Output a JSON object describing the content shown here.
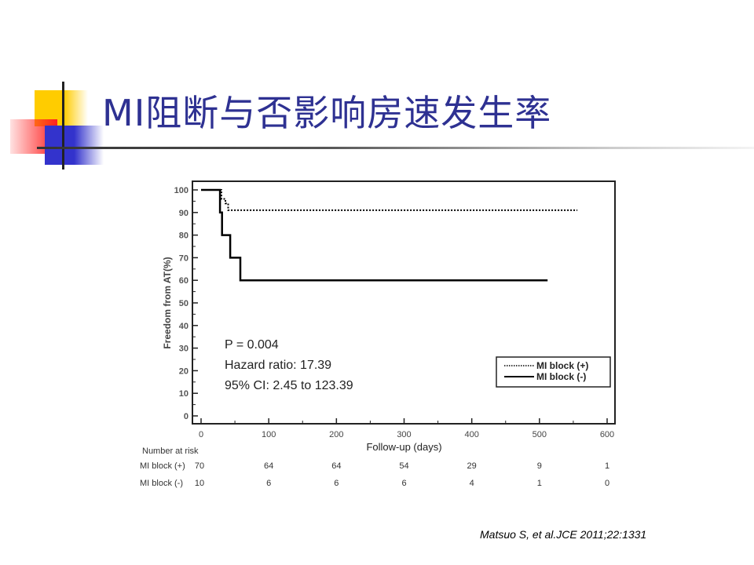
{
  "slide": {
    "title": "MI阻断与否影响房速发生率",
    "citation": "Matsuo S, et al.JCE 2011;22:1331",
    "colors": {
      "title": "#2e3192",
      "logo_yellow": "#ffcc00",
      "logo_blue": "#3333cc",
      "logo_red": "#ff2020"
    }
  },
  "chart_data": {
    "type": "line",
    "subtype": "kaplan-meier step",
    "xlabel": "Follow-up (days)",
    "ylabel": "Freedom from AT(%)",
    "xlim": [
      0,
      600
    ],
    "ylim": [
      0,
      100
    ],
    "x_ticks": [
      0,
      100,
      200,
      300,
      400,
      500,
      600
    ],
    "y_ticks": [
      0,
      10,
      20,
      30,
      40,
      50,
      60,
      70,
      80,
      90,
      100
    ],
    "grid": false,
    "legend_position": "bottom-right",
    "series": [
      {
        "name": "MI block (+)",
        "style": "dotted",
        "color": "#000000",
        "points": [
          [
            0,
            100
          ],
          [
            30,
            100
          ],
          [
            30,
            96
          ],
          [
            36,
            96
          ],
          [
            36,
            94
          ],
          [
            40,
            94
          ],
          [
            40,
            91
          ],
          [
            556,
            91
          ]
        ]
      },
      {
        "name": "MI block (-)",
        "style": "solid",
        "color": "#000000",
        "points": [
          [
            0,
            100
          ],
          [
            28,
            100
          ],
          [
            28,
            90
          ],
          [
            31,
            90
          ],
          [
            31,
            80
          ],
          [
            43,
            80
          ],
          [
            43,
            70
          ],
          [
            58,
            70
          ],
          [
            58,
            60
          ],
          [
            512,
            60
          ]
        ]
      }
    ],
    "annotations": [
      "P = 0.004",
      "Hazard ratio: 17.39",
      "95% CI: 2.45 to 123.39"
    ],
    "risk_table": {
      "title": "Number at risk",
      "rows": [
        {
          "label": "MI block (+)",
          "values": [
            70,
            64,
            64,
            54,
            29,
            9,
            1
          ]
        },
        {
          "label": "MI block (-)",
          "values": [
            10,
            6,
            6,
            6,
            4,
            1,
            0
          ]
        }
      ]
    }
  }
}
